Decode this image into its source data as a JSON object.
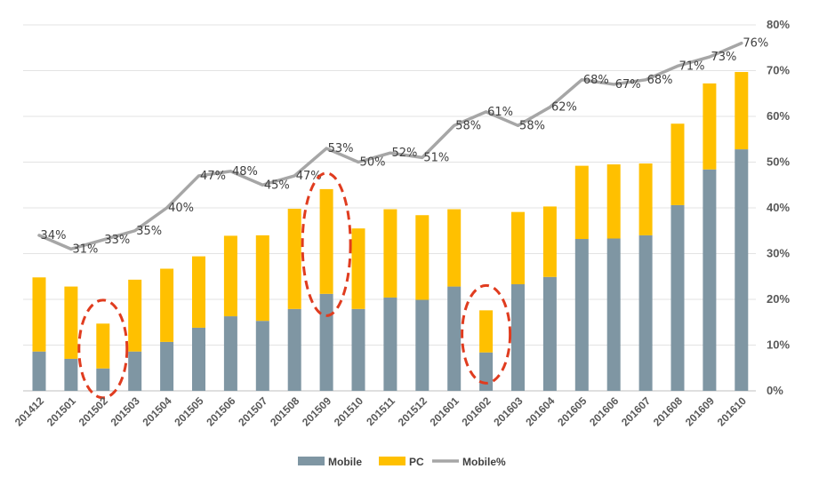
{
  "chart_data": {
    "type": "bar",
    "subtype": "stacked bar with line overlay",
    "categories": [
      "201412",
      "201501",
      "201502",
      "201503",
      "201504",
      "201505",
      "201506",
      "201507",
      "201508",
      "201509",
      "201510",
      "201511",
      "201512",
      "201601",
      "201602",
      "201603",
      "201604",
      "201605",
      "201606",
      "201607",
      "201608",
      "201609",
      "201610"
    ],
    "series": [
      {
        "name": "Mobile",
        "type": "bar",
        "stack": "total",
        "color": "#7f96a3",
        "values": [
          8.6,
          7.0,
          4.9,
          8.6,
          10.7,
          13.8,
          16.3,
          15.3,
          17.9,
          21.2,
          17.9,
          20.4,
          19.9,
          22.8,
          8.4,
          23.3,
          24.9,
          33.2,
          33.3,
          34.0,
          40.6,
          48.4,
          52.8
        ]
      },
      {
        "name": "PC",
        "type": "bar",
        "stack": "total",
        "color": "#ffc000",
        "values": [
          16.2,
          15.8,
          9.8,
          15.7,
          16.0,
          15.6,
          17.6,
          18.7,
          21.9,
          22.9,
          17.6,
          19.3,
          18.5,
          16.9,
          9.2,
          15.8,
          15.4,
          16.0,
          16.2,
          15.7,
          17.8,
          18.8,
          16.9
        ]
      },
      {
        "name": "Mobile%",
        "type": "line",
        "axis": "right",
        "color": "#a6a6a6",
        "values": [
          34,
          31,
          33,
          35,
          40,
          47,
          48,
          45,
          47,
          53,
          50,
          52,
          51,
          58,
          61,
          58,
          62,
          68,
          67,
          68,
          71,
          73,
          76
        ],
        "labels": [
          "34%",
          "31%",
          "33%",
          "35%",
          "40%",
          "47%",
          "48%",
          "45%",
          "47%",
          "53%",
          "50%",
          "52%",
          "51%",
          "58%",
          "61%",
          "58%",
          "62%",
          "68%",
          "67%",
          "68%",
          "71%",
          "73%",
          "76%"
        ]
      }
    ],
    "y_left_range": [
      0,
      80
    ],
    "y_right_range": [
      0,
      80
    ],
    "y_right_ticks": [
      "0%",
      "10%",
      "20%",
      "30%",
      "40%",
      "50%",
      "60%",
      "70%",
      "80%"
    ],
    "gridlines": true,
    "legend_position": "bottom",
    "legend": [
      "Mobile",
      "PC",
      "Mobile%"
    ],
    "annotations": [
      {
        "type": "dashed-ellipse",
        "category": "201502",
        "color": "#e03c1f"
      },
      {
        "type": "dashed-ellipse",
        "category": "201509",
        "color": "#e03c1f"
      },
      {
        "type": "dashed-ellipse",
        "category": "201602",
        "color": "#e03c1f"
      }
    ]
  }
}
